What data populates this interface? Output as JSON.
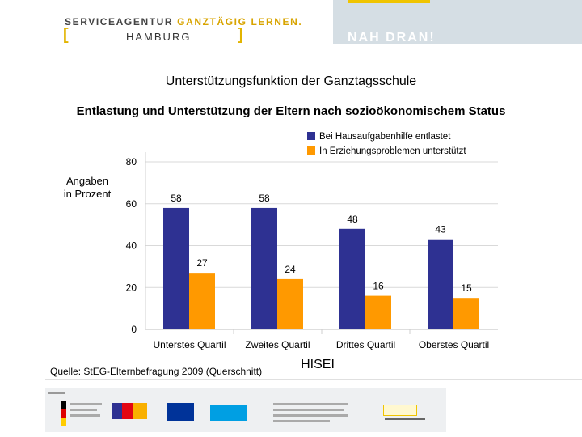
{
  "header": {
    "org_prefix": "SERVICEAGENTUR ",
    "org_accent": "GANZTÄGIG LERNEN.",
    "bracket_open": "[",
    "bracket_close": "]",
    "city": "HAMBURG",
    "slogan": "NAH DRAN!"
  },
  "slide": {
    "title": "Unterstützungsfunktion der Ganztagsschule",
    "subtitle": "Entlastung und Unterstützung der Eltern nach sozioökonomischem Status",
    "ylabel_line1": "Angaben",
    "ylabel_line2": "in Prozent",
    "source": "Quelle: StEG-Elternbefragung 2009 (Querschnitt)"
  },
  "chart_data": {
    "type": "bar",
    "title": "Entlastung und Unterstützung der Eltern nach sozioökonomischem Status",
    "xlabel": "HISEI",
    "ylabel": "Angaben in Prozent",
    "categories": [
      "Unterstes Quartil",
      "Zweites Quartil",
      "Drittes Quartil",
      "Oberstes Quartil"
    ],
    "series": [
      {
        "name": "Bei Hausaufgabenhilfe entlastet",
        "values": [
          58,
          58,
          48,
          43
        ],
        "color": "#2e3192"
      },
      {
        "name": "In Erziehungsproblemen unterstützt",
        "values": [
          27,
          24,
          16,
          15
        ],
        "color": "#ff9900"
      }
    ],
    "ylim": [
      0,
      80
    ],
    "yticks": [
      0,
      20,
      40,
      60,
      80
    ],
    "grid": true,
    "legend": "top-right"
  },
  "colors": {
    "accent_yellow": "#f0c400",
    "header_grey": "#d5dee4",
    "grid": "#d9d9d9"
  }
}
